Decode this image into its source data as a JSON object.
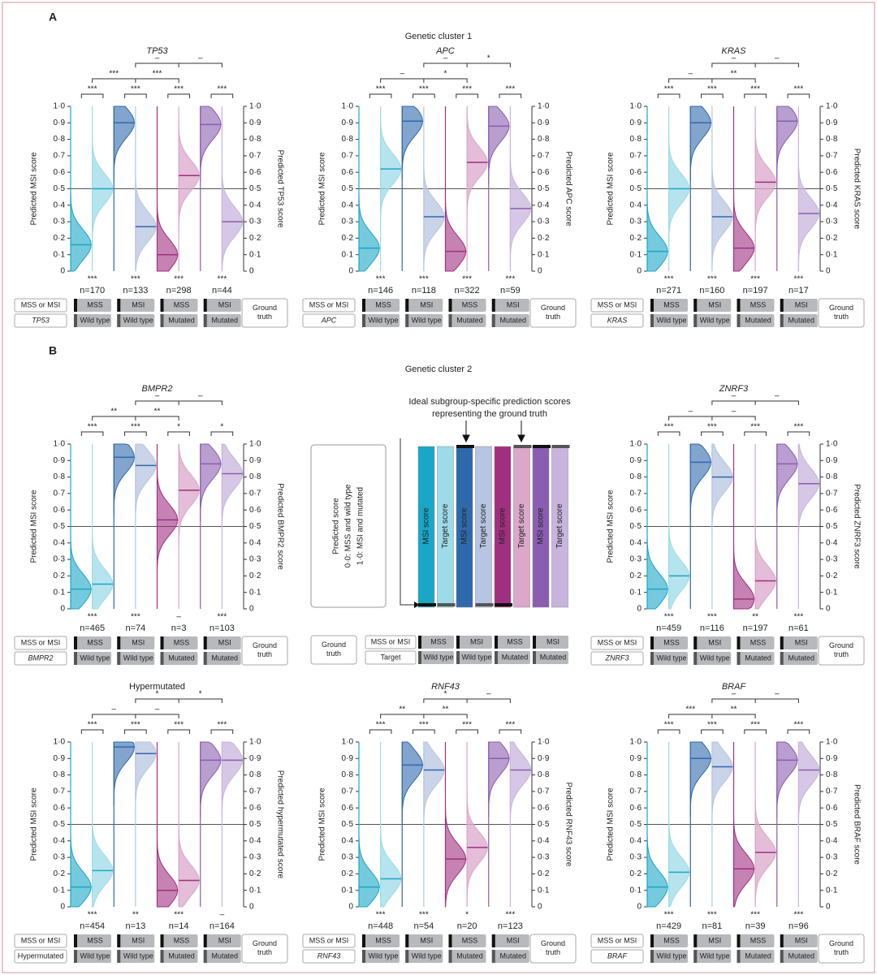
{
  "sections": {
    "a": "A",
    "b": "B",
    "cluster1": "Genetic cluster 1",
    "cluster2": "Genetic cluster 2"
  },
  "shared": {
    "y_label": "Predicted MSI score",
    "ylim": [
      0,
      1
    ],
    "yticks": [
      0,
      {
        "value": 0.1,
        "label": "0·1"
      },
      {
        "value": 0.2,
        "label": "0·2"
      },
      {
        "value": 0.3,
        "label": "0·3"
      },
      {
        "value": 0.4,
        "label": "0·4"
      },
      {
        "value": 0.5,
        "label": "0·5"
      },
      {
        "value": 0.6,
        "label": "0·6"
      },
      {
        "value": 0.7,
        "label": "0·7"
      },
      {
        "value": 0.8,
        "label": "0·8"
      },
      {
        "value": 0.9,
        "label": "0·9"
      },
      {
        "value": 1,
        "label": "1·0"
      }
    ],
    "reference_line": 0.5,
    "status_header": "MSS or MSI",
    "ground_truth": "Ground truth",
    "group_colors": [
      [
        "#1aa6c6",
        "#9edbe8"
      ],
      [
        "#2f69ad",
        "#b7c5e2"
      ],
      [
        "#a02f80",
        "#dba7cb"
      ],
      [
        "#8a5db1",
        "#c9b4de"
      ]
    ]
  },
  "chart_data": [
    {
      "type": "raincloud",
      "title": "TP53",
      "italic": true,
      "right_label": "Predicted TP53 score",
      "groups": [
        {
          "status": "MSS",
          "genotype": "Wild type",
          "n_label": "n=170",
          "sig": "***",
          "median_msi": 0.16,
          "median_target": 0.5
        },
        {
          "status": "MSI",
          "genotype": "Wild type",
          "n_label": "n=133",
          "sig": "***",
          "median_msi": 0.9,
          "median_target": 0.27
        },
        {
          "status": "MSS",
          "genotype": "Mutated",
          "n_label": "n=298",
          "sig": "***",
          "median_msi": 0.1,
          "median_target": 0.58
        },
        {
          "status": "MSI",
          "genotype": "Mutated",
          "n_label": "n=44",
          "sig": "***",
          "median_msi": 0.89,
          "median_target": 0.3
        }
      ],
      "brackets_pair": [
        "***",
        "***",
        "***",
        "***"
      ],
      "brackets_mid": [
        "***",
        "***"
      ],
      "brackets_top": [
        "–",
        "–"
      ]
    },
    {
      "type": "raincloud",
      "title": "APC",
      "italic": true,
      "right_label": "Predicted APC score",
      "groups": [
        {
          "status": "MSS",
          "genotype": "Wild type",
          "n_label": "n=146",
          "sig": "***",
          "median_msi": 0.14,
          "median_target": 0.62
        },
        {
          "status": "MSI",
          "genotype": "Wild type",
          "n_label": "n=118",
          "sig": "***",
          "median_msi": 0.91,
          "median_target": 0.33
        },
        {
          "status": "MSS",
          "genotype": "Mutated",
          "n_label": "n=322",
          "sig": "***",
          "median_msi": 0.12,
          "median_target": 0.66
        },
        {
          "status": "MSI",
          "genotype": "Mutated",
          "n_label": "n=59",
          "sig": "***",
          "median_msi": 0.88,
          "median_target": 0.38
        }
      ],
      "brackets_pair": [
        "***",
        "***",
        "***",
        "***"
      ],
      "brackets_mid": [
        "–",
        "*"
      ],
      "brackets_top": [
        "–",
        "*"
      ]
    },
    {
      "type": "raincloud",
      "title": "KRAS",
      "italic": true,
      "right_label": "Predicted KRAS score",
      "groups": [
        {
          "status": "MSS",
          "genotype": "Wild type",
          "n_label": "n=271",
          "sig": "***",
          "median_msi": 0.12,
          "median_target": 0.5
        },
        {
          "status": "MSI",
          "genotype": "Wild type",
          "n_label": "n=160",
          "sig": "***",
          "median_msi": 0.9,
          "median_target": 0.33
        },
        {
          "status": "MSS",
          "genotype": "Mutated",
          "n_label": "n=197",
          "sig": "***",
          "median_msi": 0.14,
          "median_target": 0.54
        },
        {
          "status": "MSI",
          "genotype": "Mutated",
          "n_label": "n=17",
          "sig": "***",
          "median_msi": 0.91,
          "median_target": 0.35
        }
      ],
      "brackets_pair": [
        "***",
        "***",
        "***",
        "***"
      ],
      "brackets_mid": [
        "–",
        "**"
      ],
      "brackets_top": [
        "–",
        "–"
      ]
    },
    {
      "type": "raincloud",
      "title": "BMPR2",
      "italic": true,
      "right_label": "Predicted BMPR2 score",
      "groups": [
        {
          "status": "MSS",
          "genotype": "Wild type",
          "n_label": "n=465",
          "sig": "***",
          "median_msi": 0.12,
          "median_target": 0.15
        },
        {
          "status": "MSI",
          "genotype": "Wild type",
          "n_label": "n=74",
          "sig": "***",
          "median_msi": 0.92,
          "median_target": 0.87
        },
        {
          "status": "MSS",
          "genotype": "Mutated",
          "n_label": "n=3",
          "sig": "–",
          "median_msi": 0.54,
          "median_target": 0.72
        },
        {
          "status": "MSI",
          "genotype": "Mutated",
          "n_label": "n=103",
          "sig": "***",
          "median_msi": 0.88,
          "median_target": 0.82
        }
      ],
      "brackets_pair": [
        "***",
        "***",
        "*",
        "*"
      ],
      "brackets_mid": [
        "**",
        "**"
      ],
      "brackets_top": [
        "–",
        "–"
      ]
    },
    {
      "type": "raincloud",
      "title": "ZNRF3",
      "italic": true,
      "right_label": "Predicted ZNRF3 score",
      "groups": [
        {
          "status": "MSS",
          "genotype": "Wild type",
          "n_label": "n=459",
          "sig": "***",
          "median_msi": 0.12,
          "median_target": 0.2
        },
        {
          "status": "MSI",
          "genotype": "Wild type",
          "n_label": "n=116",
          "sig": "***",
          "median_msi": 0.89,
          "median_target": 0.8
        },
        {
          "status": "MSS",
          "genotype": "Mutated",
          "n_label": "n=197",
          "sig": "**",
          "median_msi": 0.06,
          "median_target": 0.17
        },
        {
          "status": "MSI",
          "genotype": "Mutated",
          "n_label": "n=61",
          "sig": "***",
          "median_msi": 0.88,
          "median_target": 0.76
        }
      ],
      "brackets_pair": [
        "***",
        "***",
        "***",
        "***"
      ],
      "brackets_mid": [
        "–",
        "–"
      ],
      "brackets_top": [
        "–",
        "–"
      ]
    },
    {
      "type": "raincloud",
      "title": "Hypermutated",
      "italic": false,
      "right_label": "Predicted hypermutated score",
      "groups": [
        {
          "status": "MSS",
          "genotype": "Wild type",
          "n_label": "n=454",
          "sig": "***",
          "median_msi": 0.12,
          "median_target": 0.22
        },
        {
          "status": "MSI",
          "genotype": "Wild type",
          "n_label": "n=13",
          "sig": "**",
          "median_msi": 0.97,
          "median_target": 0.93
        },
        {
          "status": "MSS",
          "genotype": "Mutated",
          "n_label": "n=14",
          "sig": "***",
          "median_msi": 0.1,
          "median_target": 0.16
        },
        {
          "status": "MSI",
          "genotype": "Mutated",
          "n_label": "n=164",
          "sig": "–",
          "median_msi": 0.89,
          "median_target": 0.89
        }
      ],
      "brackets_pair": [
        "***",
        "***",
        "***",
        "***"
      ],
      "brackets_mid": [
        "–",
        "–"
      ],
      "brackets_top": [
        "*",
        "*"
      ]
    },
    {
      "type": "raincloud",
      "title": "RNF43",
      "italic": true,
      "right_label": "Predicted RNF43 score",
      "groups": [
        {
          "status": "MSS",
          "genotype": "Wild type",
          "n_label": "n=448",
          "sig": "***",
          "median_msi": 0.12,
          "median_target": 0.17
        },
        {
          "status": "MSI",
          "genotype": "Wild type",
          "n_label": "n=54",
          "sig": "***",
          "median_msi": 0.86,
          "median_target": 0.83
        },
        {
          "status": "MSS",
          "genotype": "Mutated",
          "n_label": "n=20",
          "sig": "*",
          "median_msi": 0.29,
          "median_target": 0.36
        },
        {
          "status": "MSI",
          "genotype": "Mutated",
          "n_label": "n=123",
          "sig": "***",
          "median_msi": 0.9,
          "median_target": 0.83
        }
      ],
      "brackets_pair": [
        "***",
        "***",
        "***",
        "***"
      ],
      "brackets_mid": [
        "**",
        "**"
      ],
      "brackets_top": [
        "*",
        "–"
      ]
    },
    {
      "type": "raincloud",
      "title": "BRAF",
      "italic": true,
      "right_label": "Predicted BRAF score",
      "groups": [
        {
          "status": "MSS",
          "genotype": "Wild type",
          "n_label": "n=429",
          "sig": "***",
          "median_msi": 0.12,
          "median_target": 0.21
        },
        {
          "status": "MSI",
          "genotype": "Wild type",
          "n_label": "n=81",
          "sig": "***",
          "median_msi": 0.9,
          "median_target": 0.85
        },
        {
          "status": "MSS",
          "genotype": "Mutated",
          "n_label": "n=39",
          "sig": "***",
          "median_msi": 0.23,
          "median_target": 0.33
        },
        {
          "status": "MSI",
          "genotype": "Mutated",
          "n_label": "n=96",
          "sig": "***",
          "median_msi": 0.89,
          "median_target": 0.83
        }
      ],
      "brackets_pair": [
        "***",
        "***",
        "***",
        "***"
      ],
      "brackets_mid": [
        "***",
        "**"
      ],
      "brackets_top": [
        "–",
        "–"
      ]
    }
  ],
  "legend_diagram": {
    "title_lines": [
      "Ideal subgroup-specific prediction scores",
      "representing the ground truth"
    ],
    "box_lines": [
      "Predicted score",
      "0·0: MSS and wild type",
      "1·0: MSI and mutated"
    ],
    "bar_labels": [
      "MSI score",
      "Target score"
    ],
    "table": {
      "ground_truth": "Ground truth",
      "row1_header": "MSS or MSI",
      "row2_header": "Target",
      "status": [
        "MSS",
        "MSI",
        "MSS",
        "MSI"
      ],
      "genotype": [
        "Wild type",
        "Wild type",
        "Mutated",
        "Mutated"
      ]
    }
  }
}
